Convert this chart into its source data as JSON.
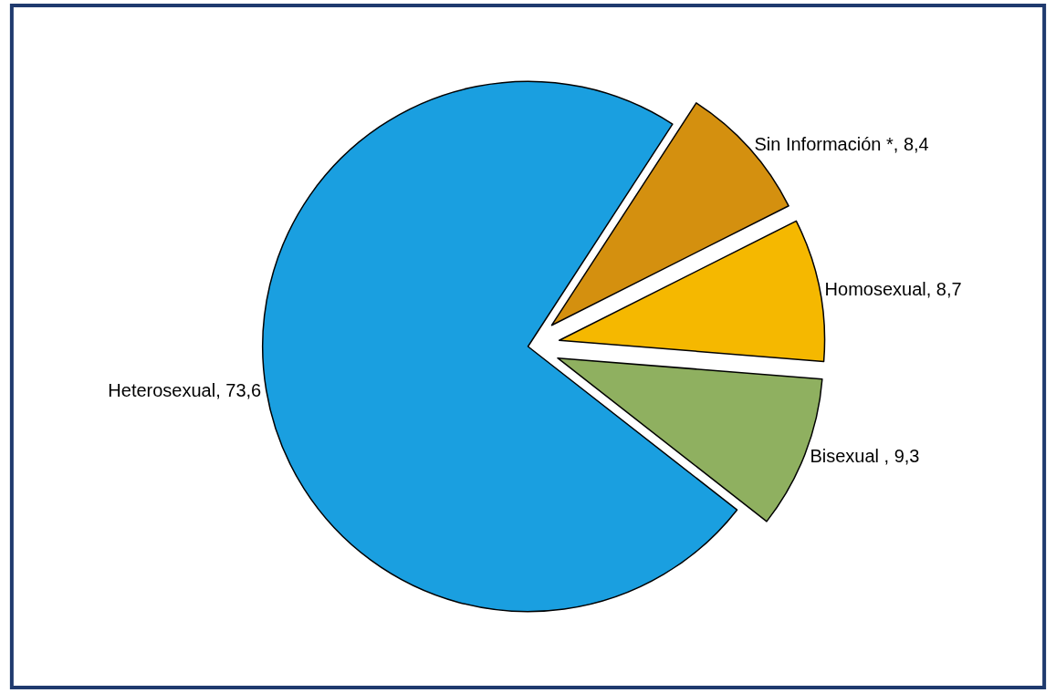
{
  "chart_data": {
    "type": "pie",
    "categories": [
      "Sin Información *",
      "Homosexual",
      "Bisexual ",
      "Heterosexual"
    ],
    "values": [
      8.4,
      8.7,
      9.3,
      73.6
    ],
    "value_labels": [
      "8,4",
      "8,7",
      "9,3",
      "73,6"
    ],
    "colors": [
      "#d4900f",
      "#f5b800",
      "#8fb060",
      "#1a9fe0"
    ],
    "legend": false
  }
}
